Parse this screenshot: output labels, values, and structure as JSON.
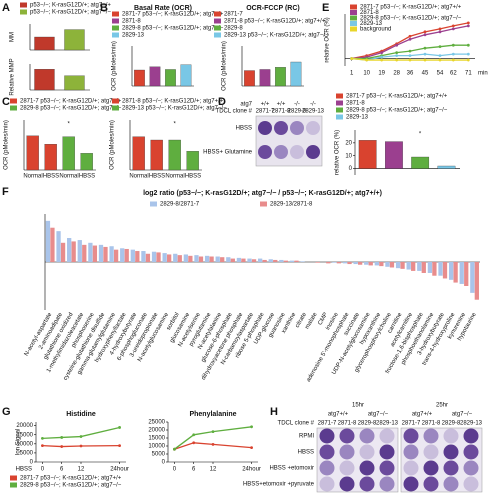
{
  "chart_data": [
    {
      "type": "bar",
      "panel": "A",
      "ylabel": "MM",
      "values": [
        0.35,
        0.55
      ],
      "colors": [
        "#c0392b",
        "#8db33a"
      ],
      "ylim": [
        0,
        0.7
      ],
      "legend": [
        {
          "name": "p53−/−; K-rasG12D/+; atg7+/+",
          "color": "#c0392b"
        },
        {
          "name": "p53−/−; K-rasG12D/+; atg7−/−",
          "color": "#8db33a"
        }
      ]
    },
    {
      "type": "bar",
      "ylabel": "Relative MMP",
      "values": [
        0.8,
        0.55
      ],
      "colors": [
        "#c0392b",
        "#8db33a"
      ],
      "ylim": [
        0,
        1
      ]
    },
    {
      "type": "bar",
      "panel": "B",
      "title": "Basal Rate (OCR)",
      "ylabel": "OCR (pMoles/min)",
      "values": [
        60,
        72,
        62,
        80
      ],
      "colors": [
        "#d9432f",
        "#9b3f8f",
        "#5fae3f",
        "#79c7e6"
      ],
      "ylim": [
        0,
        150
      ],
      "legend": [
        {
          "name": "2871-7 p53−/−; K-rasG12D/+; atg7+/+",
          "color": "#d9432f"
        },
        {
          "name": "2871-8",
          "color": "#9b3f8f"
        },
        {
          "name": "2829-8 p53−/−; K-rasG12D/+; atg7−/−",
          "color": "#5fae3f"
        },
        {
          "name": "2829-13",
          "color": "#79c7e6"
        }
      ]
    },
    {
      "type": "bar",
      "title": "OCR-FCCP (RC)",
      "ylabel": "OCR (pMoles/min)",
      "values": [
        58,
        62,
        70,
        90
      ],
      "colors": [
        "#d9432f",
        "#9b3f8f",
        "#5fae3f",
        "#79c7e6"
      ],
      "ylim": [
        0,
        150
      ],
      "legend": [
        {
          "name": "2871-7",
          "color": "#d9432f"
        },
        {
          "name": "2871-8 p53−/−; K-rasG12D/+; atg7+/+",
          "color": "#9b3f8f"
        },
        {
          "name": "2829-8",
          "color": "#5fae3f"
        },
        {
          "name": "2829-13 p53−/−; K-rasG12D/+; atg7−/−",
          "color": "#79c7e6"
        }
      ]
    },
    {
      "type": "line",
      "panel": "E",
      "ylabel": "relative OCR (%)",
      "xlabel": "min",
      "x": [
        1,
        10,
        19,
        28,
        36,
        45,
        54,
        62,
        71
      ],
      "xlim": [
        -3,
        75
      ],
      "xticks": [
        1,
        10,
        19,
        28,
        36,
        45,
        54,
        62,
        71
      ],
      "ylim": [
        -5,
        30
      ],
      "series": [
        {
          "name": "2871-7 p53−/−; K-rasG12D/+; atg7+/+",
          "color": "#d9432f",
          "values": [
            0,
            2,
            5,
            10,
            15,
            18,
            20,
            22,
            24
          ]
        },
        {
          "name": "2871-8",
          "color": "#9b3f8f",
          "values": [
            0,
            1,
            4,
            9,
            13,
            16,
            18,
            20,
            22
          ]
        },
        {
          "name": "2829-8 p53−/−; K-rasG12D/+; atg7−/−",
          "color": "#5fae3f",
          "values": [
            0,
            0,
            2,
            4,
            5,
            7,
            8,
            9,
            9
          ]
        },
        {
          "name": "2829-13",
          "color": "#79c7e6",
          "values": [
            0,
            -1,
            1,
            2,
            2,
            3,
            2,
            3,
            3
          ]
        },
        {
          "name": "background",
          "color": "#e8d52a",
          "values": [
            0,
            -1,
            -1,
            -1,
            -1,
            -1,
            -1,
            -1,
            -1
          ]
        }
      ]
    },
    {
      "type": "bar",
      "panel": "C",
      "ylabel": "OCR (pMoles/min)",
      "categories": [
        "Normal",
        "HBSS",
        "Normal",
        "HBSS"
      ],
      "values": [
        82,
        62,
        80,
        40
      ],
      "colors": [
        "#d9432f",
        "#d9432f",
        "#5fae3f",
        "#5fae3f"
      ],
      "ylim": [
        0,
        120
      ],
      "annotation": "*",
      "legend": [
        {
          "name": "2871-7 p53−/−; K-rasG12D/+; atg7+/+",
          "color": "#d9432f"
        },
        {
          "name": "2829-8 p53−/−; K-rasG12D/+; atg7−/−",
          "color": "#5fae3f"
        }
      ]
    },
    {
      "type": "bar",
      "ylabel": "OCR (pMoles/min)",
      "categories": [
        "Normal",
        "HBSS",
        "Normal",
        "HBSS"
      ],
      "values": [
        80,
        72,
        72,
        45
      ],
      "colors": [
        "#d9432f",
        "#d9432f",
        "#5fae3f",
        "#5fae3f"
      ],
      "ylim": [
        0,
        120
      ],
      "annotation": "*",
      "legend": [
        {
          "name": "2871-8 p53−/−; K-rasG12D/+; atg7+/+",
          "color": "#d9432f"
        },
        {
          "name": "2829-13 p53−/−; K-rasG12D/+; atg7−/−",
          "color": "#5fae3f"
        }
      ]
    },
    {
      "type": "bar",
      "ylabel": "relative OCR (%)",
      "values": [
        22,
        21,
        9,
        2
      ],
      "colors": [
        "#d9432f",
        "#9b3f8f",
        "#5fae3f",
        "#79c7e6"
      ],
      "ylim": [
        -5,
        30
      ],
      "yticks": [
        0,
        10,
        20
      ],
      "annotation": "*",
      "legend": [
        {
          "name": "2871-7 p53−/−; K-rasG12D/+; atg7+/+",
          "color": "#d9432f"
        },
        {
          "name": "2871-8",
          "color": "#9b3f8f"
        },
        {
          "name": "2829-8 p53−/−; K-rasG12D/+; atg7−/−",
          "color": "#5fae3f"
        },
        {
          "name": "2829-13",
          "color": "#79c7e6"
        }
      ]
    },
    {
      "type": "bar",
      "panel": "F",
      "title": "log2 ratio (p53−/−; K-rasG12D/+; atg7−/− / p53−/−; K-rasG12D/+; atg7+/+)",
      "ylim": [
        -7,
        7
      ],
      "categories": [
        "N-acetyl-aspartate",
        "2-aminoadipate",
        "glutathione oxidized",
        "1-methylimidazoleacetate",
        "phosphoserine",
        "cysteine-glutathione disulfide",
        "gamma-glutamylglutamine",
        "hydroxyphenyllactate",
        "4-hydroxybutyrate",
        "6-phosphogluconate",
        "3-ureidopropionate",
        "N-acetylglucosamine",
        "sorbitol",
        "glucosamine",
        "N-acetylserine",
        "pyroglutamine",
        "N-acetylalanine",
        "glucose-6-phosphate",
        "dihydroxyacetone phosphate",
        "N-carbamoylaspartate",
        "ribose 5-phosphate",
        "UDP-glucose",
        "guanosine",
        "xanthine",
        "citrate",
        "malate",
        "CMP",
        "inosine",
        "adenosine 5'-monophosphate",
        "succinate",
        "UDP-N-acetylglucosamine",
        "hypoxanthine",
        "glycerophosphorylcholine",
        "carnitine",
        "acetylcarnitine",
        "fructose-1,6-bisphosphate",
        "phosphoethanolamine",
        "3-hydroxybutyrate",
        "trans-4-hydroxyproline",
        "kynurenine",
        "hypotaurine"
      ],
      "series": [
        {
          "name": "2829-8/2871-7",
          "color": "#a9c4ea",
          "values": [
            6.0,
            4.5,
            3.5,
            3.2,
            2.8,
            2.5,
            2.3,
            2.0,
            1.8,
            1.6,
            1.5,
            1.3,
            1.2,
            1.1,
            1.0,
            0.9,
            0.8,
            0.7,
            0.6,
            0.5,
            0.5,
            0.4,
            0.3,
            0.2,
            0.1,
            0.0,
            0.0,
            -0.1,
            -0.2,
            -0.3,
            -0.4,
            -0.5,
            -0.7,
            -0.9,
            -1.1,
            -1.3,
            -1.6,
            -2.0,
            -2.6,
            -3.2,
            -4.5
          ]
        },
        {
          "name": "2829-13/2871-8",
          "color": "#e88c8c",
          "values": [
            5.0,
            2.8,
            3.0,
            2.5,
            2.4,
            2.2,
            1.8,
            1.9,
            1.6,
            1.2,
            1.4,
            1.1,
            1.0,
            0.9,
            0.8,
            0.8,
            0.7,
            0.5,
            0.5,
            0.4,
            0.3,
            0.3,
            0.2,
            0.2,
            0.0,
            -0.1,
            -0.2,
            -0.2,
            -0.3,
            -0.4,
            -0.5,
            -0.6,
            -0.8,
            -1.0,
            -1.3,
            -1.6,
            -2.0,
            -2.4,
            -3.0,
            -3.5,
            -5.5
          ]
        }
      ]
    },
    {
      "type": "line",
      "panel": "G",
      "title": "Histidine",
      "ylabel": "Ion Signal",
      "xlabel": "HBSS",
      "x": [
        0,
        6,
        12,
        24
      ],
      "xlim": [
        -2,
        26
      ],
      "xticks": [
        0,
        6,
        12,
        {
          "value": 24,
          "label": "24hour"
        }
      ],
      "ylim": [
        0,
        22000
      ],
      "yticks": [
        0,
        5000,
        10000,
        15000,
        20000
      ],
      "series": [
        {
          "name": "2871-7 p53−/−; K-rasG12D/+; atg7+/+",
          "color": "#d9432f",
          "values": [
            9000,
            8500,
            8800,
            9000
          ]
        },
        {
          "name": "2829-8 p53−/−; K-rasG12D/+; atg7−/−",
          "color": "#5fae3f",
          "values": [
            13000,
            13500,
            14000,
            19000
          ]
        }
      ]
    },
    {
      "type": "line",
      "title": "Phenylalanine",
      "x": [
        0,
        6,
        12,
        24
      ],
      "xlim": [
        -2,
        26
      ],
      "xticks": [
        0,
        6,
        12,
        {
          "value": 24,
          "label": "24hour"
        }
      ],
      "ylim": [
        0,
        25000
      ],
      "yticks": [
        0,
        5000,
        10000,
        15000,
        20000,
        25000
      ],
      "series": [
        {
          "color": "#d9432f",
          "values": [
            8000,
            12000,
            11000,
            9000
          ]
        },
        {
          "color": "#5fae3f",
          "values": [
            8000,
            17000,
            19000,
            22000
          ]
        }
      ]
    }
  ],
  "plates": [
    {
      "panel": "D",
      "genotype_label": "atg7",
      "genotypes": [
        "+/+",
        "+/+",
        "-/-",
        "-/-"
      ],
      "clone_label": "TDCL clone #",
      "clones": [
        "2871-7",
        "2871-8",
        "2829-8",
        "2829-13"
      ],
      "rows": [
        "HBSS",
        "HBSS+ Glutamine"
      ]
    },
    {
      "panel": "H",
      "times": [
        "15hr",
        "25hr"
      ],
      "genotypes": [
        "atg7+/+",
        "atg7−/−"
      ],
      "clone_label": "TDCL clone #",
      "clones": [
        "2871-7",
        "2871-8",
        "2829-8",
        "2829-13"
      ],
      "rows": [
        "RPMI",
        "HBSS",
        "HBSS +etomoxir",
        "HBSS+etomoxir +pyruvate"
      ]
    }
  ]
}
